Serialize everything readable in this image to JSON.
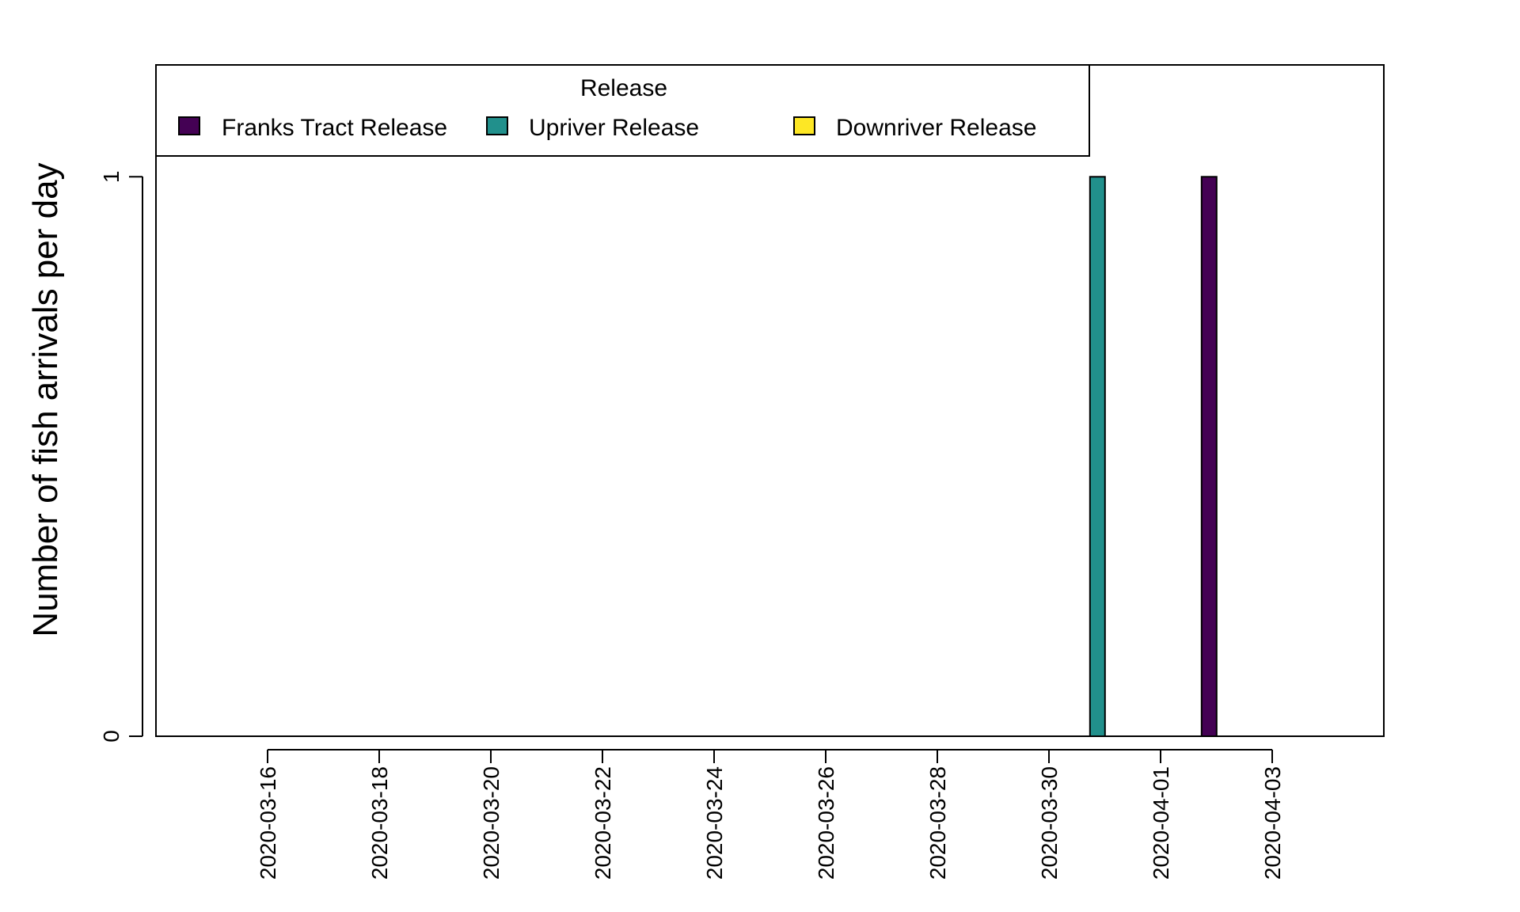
{
  "chart_data": {
    "type": "bar",
    "title": "",
    "xlabel": "",
    "ylabel": "Number of fish arrivals per day",
    "x_type": "date",
    "xlim": [
      "2020-03-14",
      "2020-04-05"
    ],
    "ylim": [
      0,
      1.2
    ],
    "x_ticks": [
      "2020-03-16",
      "2020-03-18",
      "2020-03-20",
      "2020-03-22",
      "2020-03-24",
      "2020-03-26",
      "2020-03-28",
      "2020-03-30",
      "2020-04-01",
      "2020-04-03"
    ],
    "y_ticks": [
      "0",
      "1"
    ],
    "y_tick_values": [
      0,
      1
    ],
    "grid": false,
    "legend": {
      "title": "Release",
      "placement": "top-left",
      "entries": [
        "Franks Tract Release",
        "Upriver Release",
        "Downriver Release"
      ]
    },
    "series": [
      {
        "name": "Franks Tract Release",
        "color": "#440154",
        "points": [
          {
            "date": "2020-04-02",
            "value": 1
          }
        ]
      },
      {
        "name": "Upriver Release",
        "color": "#21908C",
        "points": [
          {
            "date": "2020-03-31",
            "value": 1
          }
        ]
      },
      {
        "name": "Downriver Release",
        "color": "#FDE725",
        "points": []
      }
    ]
  }
}
